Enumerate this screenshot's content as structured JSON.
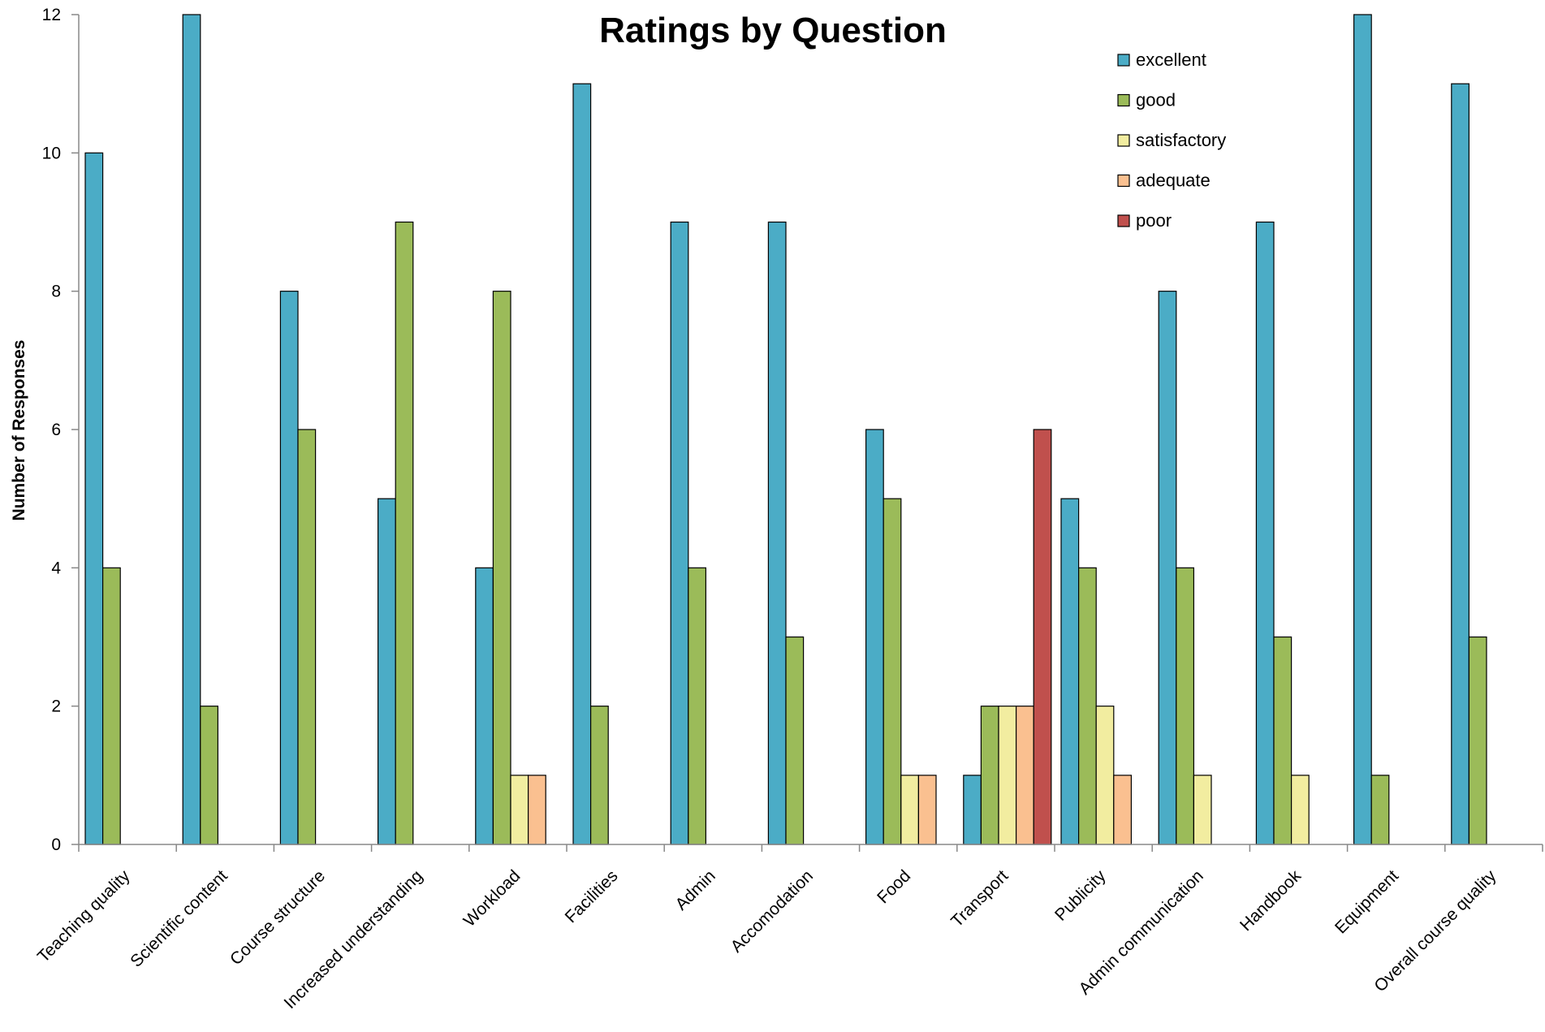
{
  "chart_data": {
    "type": "bar",
    "title": "Ratings by Question",
    "xlabel": "",
    "ylabel": "Number of Responses",
    "ylim": [
      0,
      12
    ],
    "yticks": [
      0,
      2,
      4,
      6,
      8,
      10,
      12
    ],
    "grid": false,
    "legend_position": "top-right",
    "categories": [
      "Teaching quality",
      "Scientific content",
      "Course structure",
      "Increased understanding",
      "Workload",
      "Facilities",
      "Admin",
      "Accomodation",
      "Food",
      "Transport",
      "Publicity",
      "Admin communication",
      "Handbook",
      "Equipment",
      "Overall course quality"
    ],
    "series": [
      {
        "name": "excellent",
        "color": "#4bacc6",
        "values": [
          10,
          12,
          8,
          5,
          4,
          11,
          9,
          9,
          6,
          1,
          5,
          8,
          9,
          12,
          11
        ]
      },
      {
        "name": "good",
        "color": "#9bbb59",
        "values": [
          4,
          2,
          6,
          9,
          8,
          2,
          4,
          3,
          5,
          2,
          4,
          4,
          3,
          1,
          3
        ]
      },
      {
        "name": "satisfactory",
        "color": "#f2eda0",
        "values": [
          0,
          0,
          0,
          0,
          1,
          0,
          0,
          0,
          1,
          2,
          2,
          1,
          1,
          0,
          0
        ]
      },
      {
        "name": "adequate",
        "color": "#fac090",
        "values": [
          0,
          0,
          0,
          0,
          1,
          0,
          0,
          0,
          1,
          2,
          1,
          0,
          0,
          0,
          0
        ]
      },
      {
        "name": "poor",
        "color": "#c0504d",
        "values": [
          0,
          0,
          0,
          0,
          0,
          0,
          0,
          0,
          0,
          6,
          0,
          0,
          0,
          0,
          0
        ]
      }
    ]
  }
}
